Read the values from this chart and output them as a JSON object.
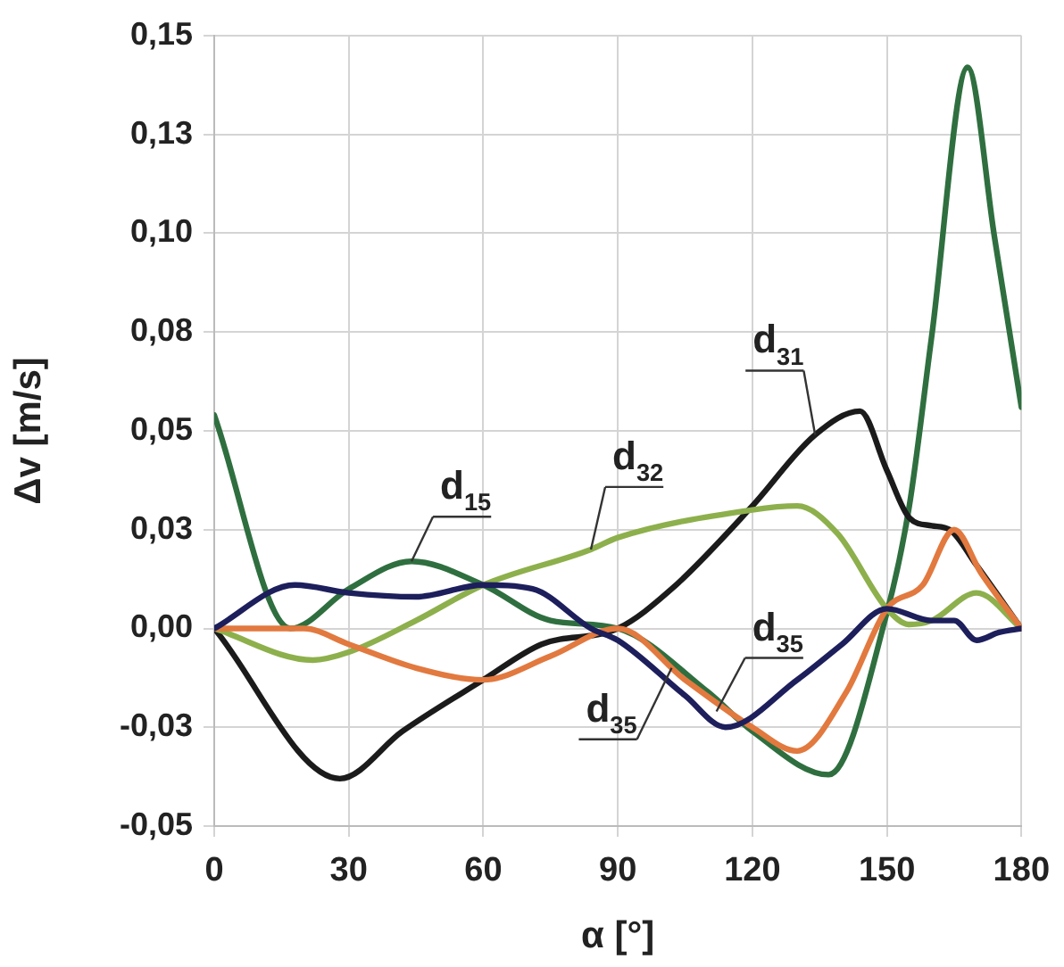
{
  "chart_data": {
    "type": "line",
    "xlabel": "α [°]",
    "ylabel": "Δv [m/s]",
    "xlim": [
      0,
      180
    ],
    "xticks": [
      0,
      30,
      60,
      90,
      120,
      150,
      180
    ],
    "ylim": [
      -0.05,
      0.15
    ],
    "yticks": [
      {
        "value": -0.05,
        "label": "-0,05"
      },
      {
        "value": -0.025,
        "label": "-0,03"
      },
      {
        "value": 0,
        "label": "0,00"
      },
      {
        "value": 0.025,
        "label": "0,03"
      },
      {
        "value": 0.05,
        "label": "0,05"
      },
      {
        "value": 0.075,
        "label": "0,08"
      },
      {
        "value": 0.1,
        "label": "0,10"
      },
      {
        "value": 0.125,
        "label": "0,13"
      },
      {
        "value": 0.15,
        "label": "0,15"
      }
    ],
    "grid": true,
    "legend": false,
    "marker": "none",
    "line_style": "solid",
    "series": [
      {
        "color": "#1d1f5c",
        "x": [
          0,
          18,
          30,
          45,
          60,
          71,
          84,
          90,
          105,
          114,
          130,
          140,
          150,
          160,
          165,
          170,
          175,
          180
        ],
        "values": [
          0,
          0.011,
          0.009,
          0.008,
          0.011,
          0.01,
          0,
          -0.003,
          -0.017,
          -0.025,
          -0.013,
          -0.004,
          0.005,
          0.002,
          0.002,
          -0.003,
          -0.001,
          0
        ]
      },
      {
        "color": "#e2793f",
        "x": [
          0,
          20,
          30,
          45,
          60,
          75,
          90,
          105,
          120,
          130,
          141,
          150,
          158,
          165,
          171,
          180
        ],
        "values": [
          0,
          0,
          -0.004,
          -0.01,
          -0.013,
          -0.007,
          0,
          -0.013,
          -0.025,
          -0.031,
          -0.016,
          0.005,
          0.011,
          0.025,
          0.014,
          0
        ]
      },
      {
        "color": "#8db04c",
        "x": [
          0,
          22,
          30,
          45,
          60,
          84,
          90,
          120,
          130,
          139,
          150,
          155,
          160,
          170,
          180
        ],
        "values": [
          0,
          -0.008,
          -0.006,
          0.002,
          0.011,
          0.02,
          0.023,
          0.03,
          0.031,
          0.024,
          0.005,
          0.001,
          0.002,
          0.009,
          0
        ]
      },
      {
        "color": "#1b1b1b",
        "x": [
          0,
          28,
          42,
          60,
          73,
          90,
          102,
          120,
          134,
          144,
          150,
          155,
          160,
          164,
          170,
          180
        ],
        "values": [
          0,
          -0.038,
          -0.026,
          -0.013,
          -0.004,
          0,
          0.01,
          0.031,
          0.049,
          0.055,
          0.04,
          0.028,
          0.026,
          0.025,
          0.016,
          0
        ]
      },
      {
        "color": "#2f6f3f",
        "x": [
          0,
          17,
          30,
          44,
          60,
          75,
          90,
          110,
          120,
          137,
          150,
          155,
          160,
          168,
          174,
          180
        ],
        "values": [
          0.054,
          0,
          0.01,
          0.017,
          0.011,
          0.002,
          0,
          -0.016,
          -0.026,
          -0.037,
          0.004,
          0.031,
          0.074,
          0.142,
          0.099,
          0.056
        ]
      }
    ],
    "annotations": [
      {
        "text": "d$_{15}$",
        "x": 44,
        "y": 0.017
      },
      {
        "text": "d$_{32}$",
        "x": 84,
        "y": 0.02
      },
      {
        "text": "d$_{31}$",
        "x": 134,
        "y": 0.049
      },
      {
        "text": "d$_{35}$",
        "x": 112,
        "y": -0.021
      },
      {
        "text": "d$_{35}$",
        "x": 102,
        "y": -0.01
      }
    ]
  }
}
